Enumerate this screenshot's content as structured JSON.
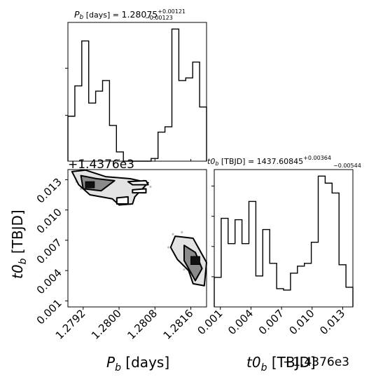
{
  "chart_data": {
    "type": "corner",
    "parameters": [
      {
        "id": "Pb",
        "title_label": "P_b [days]",
        "title_value": "1.28075",
        "title_plus": "+0.00121",
        "title_minus": "−0.00123",
        "axis_label": "P_b [days]",
        "tick_labels": [
          "1.2792",
          "1.2800",
          "1.2808",
          "1.2816"
        ],
        "tick_values": [
          1.2792,
          1.28,
          1.2808,
          1.2816
        ],
        "range": [
          1.27886,
          1.28195
        ],
        "hist_edges_start": 1.27886,
        "hist_bin_width": 0.0001545,
        "hist_counts": [
          0.34,
          0.57,
          0.91,
          0.44,
          0.53,
          0.61,
          0.27,
          0.07,
          0.0,
          0.0,
          0.0,
          0.0,
          0.02,
          0.22,
          0.26,
          1.0,
          0.61,
          0.63,
          0.75,
          0.41
        ]
      },
      {
        "id": "t0b",
        "title_label": "t0_b [TBJD]",
        "title_value": "1437.60845",
        "title_plus": "+0.00364",
        "title_minus": "−0.00544",
        "axis_label": "t0_b [TBJD]",
        "offset_label": "+1.4376e3",
        "tick_labels": [
          "0.001",
          "0.004",
          "0.007",
          "0.010",
          "0.013"
        ],
        "tick_values": [
          0.001,
          0.004,
          0.007,
          0.01,
          0.013
        ],
        "range": [
          0.0004,
          0.014
        ],
        "hist_edges_start": 0.0004,
        "hist_bin_width": 0.00068,
        "hist_counts": [
          0.21,
          0.63,
          0.45,
          0.62,
          0.45,
          0.75,
          0.22,
          0.55,
          0.31,
          0.13,
          0.12,
          0.24,
          0.29,
          0.31,
          0.46,
          0.93,
          0.88,
          0.81,
          0.3,
          0.14
        ]
      }
    ],
    "scatter_points": [
      [
        1.27935,
        0.0136
      ],
      [
        1.27945,
        0.0131
      ],
      [
        1.2796,
        0.013
      ],
      [
        1.2797,
        0.0127
      ],
      [
        1.2795,
        0.0124
      ],
      [
        1.27985,
        0.0126
      ],
      [
        1.28,
        0.0124
      ],
      [
        1.2802,
        0.0128
      ],
      [
        1.2803,
        0.0124
      ],
      [
        1.28015,
        0.012
      ],
      [
        1.2803,
        0.0117
      ],
      [
        1.2801,
        0.011
      ],
      [
        1.28025,
        0.0106
      ],
      [
        1.2798,
        0.0113
      ],
      [
        1.2799,
        0.0109
      ],
      [
        1.2807,
        0.0123
      ],
      [
        1.28055,
        0.0129
      ],
      [
        1.2805,
        0.0119
      ],
      [
        1.27905,
        0.0128
      ],
      [
        1.27915,
        0.0121
      ],
      [
        1.2812,
        0.0076
      ],
      [
        1.2814,
        0.0078
      ],
      [
        1.2813,
        0.0071
      ],
      [
        1.28155,
        0.0066
      ],
      [
        1.2815,
        0.006
      ],
      [
        1.28165,
        0.0056
      ],
      [
        1.2818,
        0.005
      ],
      [
        1.28175,
        0.0043
      ],
      [
        1.2819,
        0.0034
      ],
      [
        1.28185,
        0.0027
      ],
      [
        1.2811,
        0.0063
      ],
      [
        1.2813,
        0.0058
      ],
      [
        1.2816,
        0.0046
      ],
      [
        1.28145,
        0.0041
      ],
      [
        1.2817,
        0.0039
      ]
    ],
    "contour_levels": [
      [
        [
          1.27895,
          0.0138
        ],
        [
          1.27925,
          0.01395
        ],
        [
          1.2797,
          0.0133
        ],
        [
          1.28025,
          0.0131
        ],
        [
          1.28065,
          0.0127
        ],
        [
          1.2805,
          0.012
        ],
        [
          1.28035,
          0.0113
        ],
        [
          1.2803,
          0.0106
        ],
        [
          1.28,
          0.0105
        ],
        [
          1.27985,
          0.0111
        ],
        [
          1.27935,
          0.0115
        ],
        [
          1.2791,
          0.0125
        ],
        [
          1.27895,
          0.0138
        ]
      ],
      [
        [
          1.28125,
          0.0074
        ],
        [
          1.28165,
          0.0072
        ],
        [
          1.2818,
          0.006
        ],
        [
          1.28195,
          0.0048
        ],
        [
          1.2819,
          0.0025
        ],
        [
          1.28165,
          0.0027
        ],
        [
          1.28155,
          0.004
        ],
        [
          1.2813,
          0.0051
        ],
        [
          1.28115,
          0.0063
        ],
        [
          1.28125,
          0.0074
        ]
      ]
    ],
    "contour_inner": [
      [
        [
          1.27915,
          0.0134
        ],
        [
          1.2795,
          0.0131
        ],
        [
          1.2799,
          0.0129
        ],
        [
          1.2796,
          0.0119
        ],
        [
          1.2792,
          0.0121
        ],
        [
          1.27915,
          0.0134
        ]
      ],
      [
        [
          1.28145,
          0.0065
        ],
        [
          1.2817,
          0.0058
        ],
        [
          1.28185,
          0.0042
        ],
        [
          1.2817,
          0.003
        ],
        [
          1.28145,
          0.005
        ],
        [
          1.28145,
          0.0065
        ]
      ]
    ],
    "contour_core": [
      [
        [
          1.27925,
          0.0128
        ],
        [
          1.27945,
          0.0128
        ],
        [
          1.27945,
          0.0122
        ],
        [
          1.27925,
          0.0122
        ]
      ],
      [
        [
          1.2816,
          0.0054
        ],
        [
          1.2818,
          0.0054
        ],
        [
          1.2818,
          0.0046
        ],
        [
          1.2816,
          0.0046
        ]
      ]
    ],
    "extra_rings": [
      [
        [
          1.2802,
          0.0128
        ],
        [
          1.2806,
          0.0129
        ],
        [
          1.28065,
          0.0125
        ],
        [
          1.2803,
          0.0125
        ],
        [
          1.2802,
          0.0128
        ]
      ],
      [
        [
          1.2803,
          0.012
        ],
        [
          1.2806,
          0.0121
        ],
        [
          1.2806,
          0.0117
        ],
        [
          1.2803,
          0.0117
        ],
        [
          1.2803,
          0.012
        ]
      ],
      [
        [
          1.27995,
          0.0112
        ],
        [
          1.2802,
          0.0113
        ],
        [
          1.2802,
          0.0106
        ],
        [
          1.27995,
          0.0106
        ],
        [
          1.27995,
          0.0112
        ]
      ]
    ]
  }
}
